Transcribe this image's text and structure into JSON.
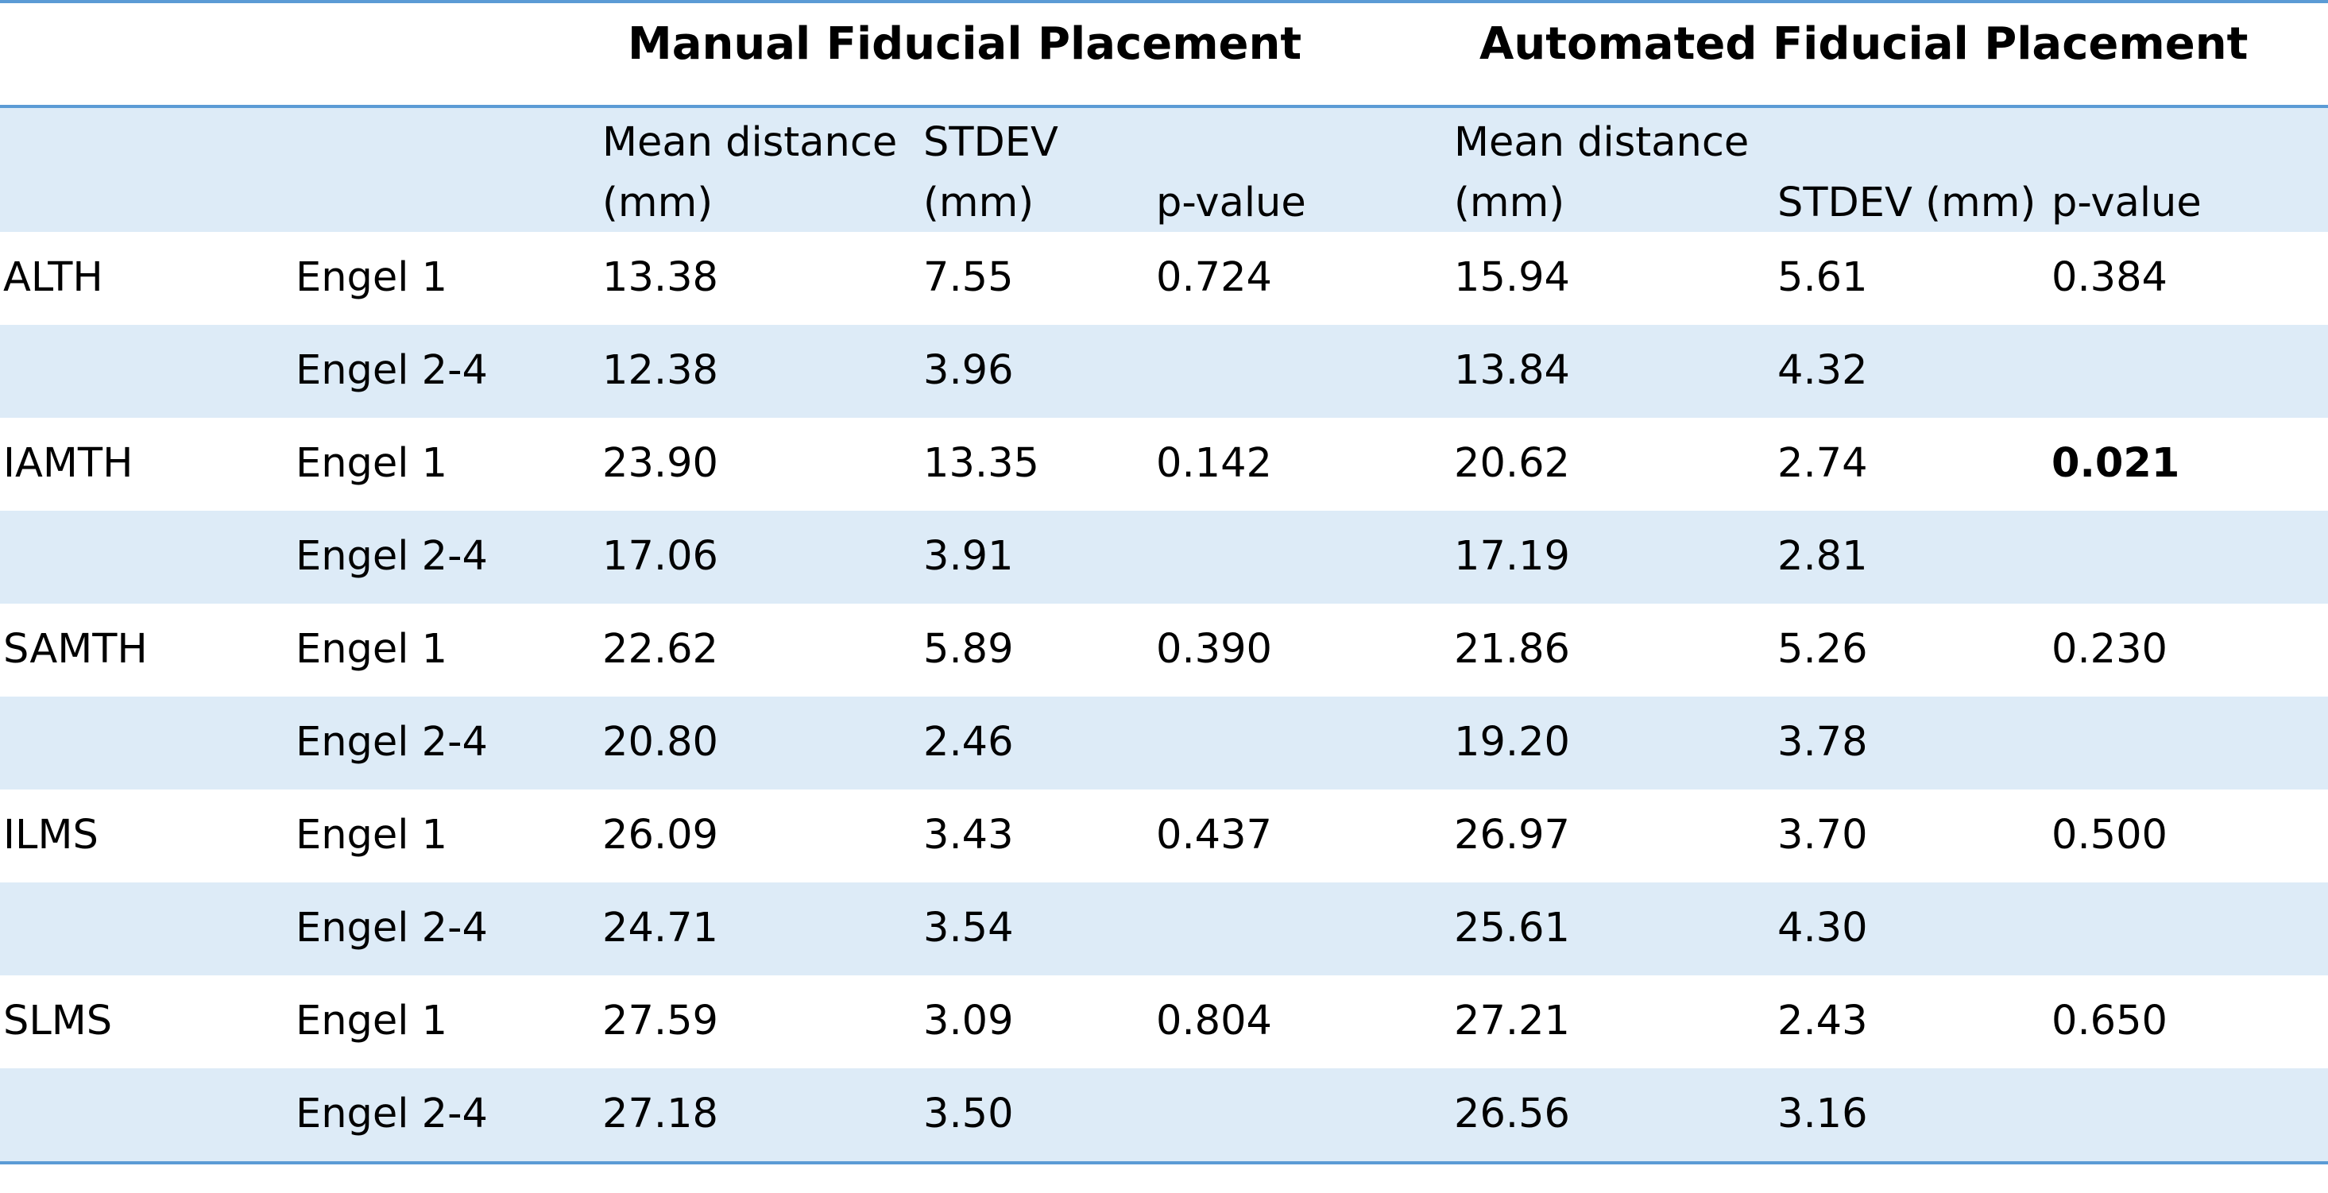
{
  "groups": {
    "manual": "Manual Fiducial Placement",
    "automated": "Automated Fiducial Placement"
  },
  "subheaders": {
    "manual": {
      "mean_line1": "Mean distance",
      "mean_line2": "(mm)",
      "stdev_line1": "STDEV",
      "stdev_line2": "(mm)",
      "pvalue": "p-value"
    },
    "automated": {
      "mean_line1": "Mean distance",
      "mean_line2": "(mm)",
      "stdev": "STDEV (mm)",
      "pvalue": "p-value"
    }
  },
  "rows": [
    {
      "region": "ALTH",
      "outcome": "Engel 1",
      "m_mean": "13.38",
      "m_sd": "7.55",
      "m_p": "0.724",
      "a_mean": "15.94",
      "a_sd": "5.61",
      "a_p": "0.384"
    },
    {
      "region": "",
      "outcome": "Engel 2-4",
      "m_mean": "12.38",
      "m_sd": "3.96",
      "m_p": "",
      "a_mean": "13.84",
      "a_sd": "4.32",
      "a_p": ""
    },
    {
      "region": "IAMTH",
      "outcome": "Engel 1",
      "m_mean": "23.90",
      "m_sd": "13.35",
      "m_p": "0.142",
      "a_mean": "20.62",
      "a_sd": "2.74",
      "a_p": "0.021"
    },
    {
      "region": "",
      "outcome": "Engel 2-4",
      "m_mean": "17.06",
      "m_sd": "3.91",
      "m_p": "",
      "a_mean": "17.19",
      "a_sd": "2.81",
      "a_p": ""
    },
    {
      "region": "SAMTH",
      "outcome": "Engel 1",
      "m_mean": "22.62",
      "m_sd": "5.89",
      "m_p": "0.390",
      "a_mean": "21.86",
      "a_sd": "5.26",
      "a_p": "0.230"
    },
    {
      "region": "",
      "outcome": "Engel 2-4",
      "m_mean": "20.80",
      "m_sd": "2.46",
      "m_p": "",
      "a_mean": "19.20",
      "a_sd": "3.78",
      "a_p": ""
    },
    {
      "region": "ILMS",
      "outcome": "Engel 1",
      "m_mean": "26.09",
      "m_sd": "3.43",
      "m_p": "0.437",
      "a_mean": "26.97",
      "a_sd": "3.70",
      "a_p": "0.500"
    },
    {
      "region": "",
      "outcome": "Engel 2-4",
      "m_mean": "24.71",
      "m_sd": "3.54",
      "m_p": "",
      "a_mean": "25.61",
      "a_sd": "4.30",
      "a_p": ""
    },
    {
      "region": "SLMS",
      "outcome": "Engel 1",
      "m_mean": "27.59",
      "m_sd": "3.09",
      "m_p": "0.804",
      "a_mean": "27.21",
      "a_sd": "2.43",
      "a_p": "0.650"
    },
    {
      "region": "",
      "outcome": "Engel 2-4",
      "m_mean": "27.18",
      "m_sd": "3.50",
      "m_p": "",
      "a_mean": "26.56",
      "a_sd": "3.16",
      "a_p": ""
    }
  ],
  "significant_cells": [
    "2.a_p"
  ],
  "colors": {
    "rule": "#5b9bd5",
    "band": "#ddebf7",
    "text": "#000000"
  }
}
